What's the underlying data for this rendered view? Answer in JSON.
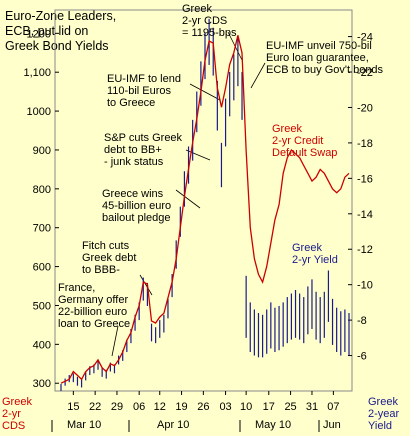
{
  "chart_data": {
    "type": "line",
    "title": [
      "Euro-Zone Leaders,",
      "ECB, put lid on",
      "Greek Bond Yields"
    ],
    "x_tick_labels": [
      "15",
      "22",
      "29",
      "06",
      "12",
      "19",
      "26",
      "03",
      "10",
      "17",
      "25",
      "31",
      "07"
    ],
    "month_labels": [
      "Mar 10",
      "Apr 10",
      "May 10",
      "Jun"
    ],
    "left_axis": {
      "label": [
        "Greek",
        "2-yr",
        "CDS"
      ],
      "ticks": [
        300,
        400,
        500,
        600,
        700,
        800,
        900,
        1000,
        "1,100",
        1200
      ],
      "ylim": [
        280,
        1260
      ],
      "color": "#cc0000"
    },
    "right_axis": {
      "label": [
        "Greek",
        "2-year",
        "Yield"
      ],
      "ticks": [
        6,
        8,
        10,
        12,
        14,
        16,
        18,
        20,
        22,
        24
      ],
      "ylim": [
        4,
        25.5
      ],
      "color": "#1a1a8c"
    },
    "series": [
      {
        "name": "Greek 2-yr Credit Default Swap",
        "color": "#cc0000",
        "x": [
          0,
          1,
          2,
          3,
          4,
          5,
          6,
          7,
          8,
          9,
          10,
          11,
          12,
          13,
          14,
          15,
          16,
          17,
          18,
          19,
          20,
          21,
          22,
          23,
          24,
          25,
          26,
          27,
          28,
          29,
          30,
          31,
          32,
          33,
          34,
          35,
          36,
          37,
          38,
          39,
          40,
          41,
          42,
          43,
          44,
          45,
          46,
          47,
          48,
          49,
          50,
          51,
          52,
          53,
          54,
          55,
          56,
          57,
          58,
          59,
          60,
          61,
          62,
          63,
          64,
          65,
          66,
          67,
          68,
          69,
          70
        ],
        "values": [
          300,
          305,
          310,
          330,
          320,
          310,
          330,
          340,
          345,
          360,
          340,
          330,
          350,
          345,
          360,
          380,
          410,
          430,
          470,
          500,
          560,
          555,
          460,
          455,
          470,
          480,
          520,
          560,
          620,
          700,
          780,
          850,
          920,
          980,
          1050,
          1130,
          1180,
          1175,
          1060,
          1010,
          1060,
          1120,
          1150,
          1195,
          1150,
          900,
          700,
          620,
          580,
          560,
          600,
          660,
          720,
          760,
          840,
          880,
          900,
          890,
          880,
          860,
          840,
          820,
          830,
          850,
          840,
          820,
          800,
          790,
          800,
          830,
          840
        ]
      },
      {
        "name": "Greek 2-yr Yield",
        "color": "#1a1a8c",
        "x": [
          0,
          1,
          2,
          3,
          4,
          5,
          6,
          7,
          8,
          9,
          10,
          11,
          12,
          13,
          14,
          15,
          16,
          17,
          18,
          19,
          20,
          21,
          22,
          23,
          24,
          25,
          26,
          27,
          28,
          29,
          30,
          31,
          32,
          33,
          34,
          35,
          36,
          37,
          38,
          39,
          40,
          41,
          42,
          43,
          44,
          45,
          46,
          47,
          48,
          49,
          50,
          51,
          52,
          53,
          54,
          55,
          56,
          57,
          58,
          59,
          60,
          61,
          62,
          63,
          64,
          65,
          66,
          67,
          68,
          69,
          70
        ],
        "high": [
          4.4,
          4.7,
          4.9,
          5.0,
          4.8,
          4.7,
          5.1,
          5.4,
          5.5,
          5.7,
          5.3,
          5.2,
          5.6,
          5.5,
          6.0,
          6.3,
          6.9,
          7.5,
          8.3,
          9.0,
          10.4,
          10.1,
          7.8,
          7.6,
          8.0,
          8.3,
          9.2,
          10.6,
          12.5,
          14.4,
          16.4,
          17.8,
          19.3,
          20.9,
          22.6,
          24.2,
          25.0,
          24.5,
          21.5,
          18.0,
          20.5,
          22.0,
          23.0,
          24.0,
          22.0,
          10.5,
          9.0,
          8.6,
          8.4,
          8.3,
          8.6,
          9.0,
          8.7,
          8.8,
          9.0,
          9.3,
          9.5,
          9.7,
          9.5,
          9.3,
          9.9,
          10.3,
          9.6,
          9.3,
          9.6,
          10.8,
          9.2,
          8.7,
          8.5,
          8.6,
          8.4
        ],
        "low": [
          4.0,
          4.3,
          4.5,
          4.5,
          4.3,
          4.2,
          4.6,
          4.9,
          5.0,
          5.2,
          4.8,
          4.7,
          5.1,
          5.0,
          5.5,
          5.7,
          6.2,
          6.7,
          7.4,
          8.0,
          9.1,
          8.8,
          6.8,
          6.7,
          7.0,
          7.3,
          8.1,
          9.3,
          10.9,
          12.7,
          14.4,
          15.7,
          17.0,
          18.6,
          20.1,
          21.6,
          22.4,
          21.8,
          18.7,
          15.5,
          17.8,
          19.5,
          20.4,
          21.2,
          19.3,
          7.0,
          6.2,
          6.0,
          5.9,
          5.9,
          6.1,
          6.4,
          6.2,
          6.3,
          6.5,
          6.7,
          6.9,
          7.0,
          6.9,
          6.7,
          7.2,
          7.5,
          6.9,
          6.7,
          7.0,
          7.9,
          6.6,
          6.2,
          6.0,
          6.2,
          6.0
        ]
      }
    ],
    "series_labels": {
      "cds": [
        "Greek",
        "2-yr Credit",
        "Default Swap"
      ],
      "yield": [
        "Greek",
        "2-yr Yield"
      ]
    },
    "annotations": [
      {
        "id": "fr-de",
        "lines": [
          "France,",
          "Germany offer",
          "22-billion euro",
          "loan to Greece"
        ]
      },
      {
        "id": "fitch",
        "lines": [
          "Fitch cuts",
          "Greek debt",
          "to BBB-"
        ]
      },
      {
        "id": "wins",
        "lines": [
          "Greece wins",
          "45-billion euro",
          "bailout pledge"
        ]
      },
      {
        "id": "sp",
        "lines": [
          "S&P cuts Greek",
          "debt to BB+",
          "- junk status"
        ]
      },
      {
        "id": "imf110",
        "lines": [
          "EU-IMF to lend",
          "110-bil Euros",
          "to Greece"
        ]
      },
      {
        "id": "cds1195",
        "lines": [
          "Greek",
          "2-yr CDS",
          "= 1195-bps"
        ]
      },
      {
        "id": "imf750",
        "lines": [
          "EU-IMF unveil 750-bil",
          "Euro loan guarantee,",
          "ECB to buy Gov't bonds"
        ]
      }
    ]
  }
}
